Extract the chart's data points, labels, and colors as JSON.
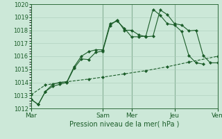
{
  "xlabel": "Pression niveau de la mer( hPa )",
  "ylim": [
    1012,
    1020
  ],
  "yticks": [
    1012,
    1013,
    1014,
    1015,
    1016,
    1017,
    1018,
    1019,
    1020
  ],
  "xtick_labels": [
    "Mar",
    "",
    "Sam",
    "Mer",
    "",
    "Jeu",
    "",
    "Ven"
  ],
  "xtick_positions": [
    0,
    5,
    10,
    14,
    17,
    20,
    23,
    26
  ],
  "day_vlines": [
    0,
    10,
    14,
    20,
    26
  ],
  "bg_color": "#cce8d8",
  "grid_color": "#aaccbb",
  "line_color": "#1a5c28",
  "line1_x": [
    0,
    1,
    2,
    3,
    4,
    5,
    6,
    7,
    8,
    9,
    10,
    11,
    12,
    13,
    14,
    15,
    16,
    17,
    18,
    19,
    20,
    21,
    22,
    23,
    24,
    25,
    26
  ],
  "line1_y": [
    1012.7,
    1012.3,
    1013.3,
    1013.7,
    1013.85,
    1014.0,
    1015.1,
    1015.8,
    1015.75,
    1016.3,
    1016.4,
    1018.35,
    1018.8,
    1018.0,
    1018.0,
    1017.65,
    1017.5,
    1017.55,
    1019.55,
    1019.2,
    1018.5,
    1018.4,
    1017.95,
    1018.0,
    1016.05,
    1015.5,
    1015.5
  ],
  "line2_x": [
    0,
    1,
    2,
    3,
    4,
    5,
    6,
    7,
    8,
    9,
    10,
    11,
    12,
    13,
    14,
    15,
    16,
    17,
    18,
    19,
    20,
    21,
    22,
    23,
    24
  ],
  "line2_y": [
    1012.7,
    1012.3,
    1013.3,
    1013.85,
    1014.0,
    1014.05,
    1015.2,
    1016.0,
    1016.35,
    1016.5,
    1016.5,
    1018.5,
    1018.7,
    1018.15,
    1017.5,
    1017.5,
    1017.55,
    1019.6,
    1019.15,
    1018.5,
    1018.4,
    1017.9,
    1016.05,
    1015.5,
    1015.4
  ],
  "line3_x": [
    0,
    2,
    5,
    8,
    10,
    13,
    16,
    19,
    22,
    26
  ],
  "line3_y": [
    1013.05,
    1013.8,
    1014.05,
    1014.25,
    1014.4,
    1014.65,
    1014.9,
    1015.2,
    1015.55,
    1016.0
  ],
  "xlim": [
    0,
    26
  ]
}
